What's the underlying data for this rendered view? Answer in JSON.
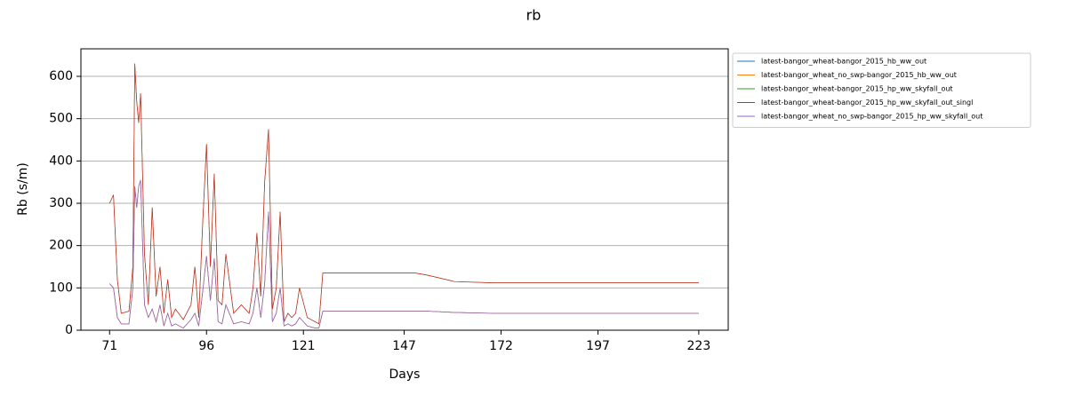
{
  "chart_data": {
    "type": "line",
    "title": "rb",
    "x_label": "Days",
    "y_label": "Rb (s/m)",
    "x": [
      71,
      72,
      73,
      74,
      76,
      77,
      77.5,
      78,
      78.5,
      79,
      80,
      81,
      82,
      83,
      84,
      85,
      86,
      87,
      88,
      90,
      92,
      93,
      94,
      95,
      96,
      97,
      98,
      99,
      100,
      101,
      103,
      105,
      107,
      108,
      109,
      110,
      111,
      112,
      113,
      114,
      115,
      116,
      117,
      118,
      119,
      120,
      122,
      124,
      125,
      126,
      130,
      150,
      153,
      160,
      170,
      190,
      223
    ],
    "series": [
      {
        "name": "latest-bangor_wheat-bangor_2015_hb_ww_out",
        "color": "#1f77b4",
        "values": [
          110,
          100,
          30,
          15,
          15,
          100,
          340,
          290,
          340,
          355,
          60,
          30,
          50,
          20,
          60,
          10,
          40,
          10,
          15,
          5,
          25,
          40,
          10,
          90,
          175,
          70,
          170,
          20,
          15,
          60,
          15,
          20,
          15,
          40,
          100,
          30,
          110,
          280,
          20,
          40,
          100,
          10,
          15,
          10,
          15,
          30,
          10,
          5,
          5,
          45,
          45,
          45,
          45,
          42,
          40,
          40,
          40
        ]
      },
      {
        "name": "latest-bangor_wheat_no_swp-bangor_2015_hb_ww_out",
        "color": "#ff7f0e",
        "values": [
          110,
          100,
          30,
          15,
          15,
          100,
          340,
          290,
          340,
          355,
          60,
          30,
          50,
          20,
          60,
          10,
          40,
          10,
          15,
          5,
          25,
          40,
          10,
          90,
          175,
          70,
          170,
          20,
          15,
          60,
          15,
          20,
          15,
          40,
          100,
          30,
          110,
          280,
          20,
          40,
          100,
          10,
          15,
          10,
          15,
          30,
          10,
          5,
          5,
          45,
          45,
          45,
          45,
          42,
          40,
          40,
          40
        ]
      },
      {
        "name": "latest-bangor_wheat-bangor_2015_hp_ww_skyfall_out",
        "color": "#2ca02c",
        "values": [
          300,
          320,
          120,
          40,
          45,
          150,
          630,
          540,
          490,
          560,
          180,
          60,
          290,
          80,
          150,
          40,
          120,
          30,
          50,
          25,
          60,
          150,
          30,
          250,
          440,
          150,
          370,
          70,
          60,
          180,
          40,
          60,
          40,
          100,
          230,
          80,
          350,
          475,
          50,
          100,
          280,
          20,
          40,
          30,
          40,
          100,
          30,
          20,
          15,
          135,
          135,
          135,
          130,
          115,
          112,
          112,
          112
        ]
      },
      {
        "name": "latest-bangor_wheat-bangor_2015_hp_ww_skyfall_out_singl",
        "color": "#d62728",
        "values": [
          300,
          320,
          120,
          40,
          45,
          150,
          630,
          540,
          490,
          560,
          180,
          60,
          290,
          80,
          150,
          40,
          120,
          30,
          50,
          25,
          60,
          150,
          30,
          250,
          440,
          150,
          370,
          70,
          60,
          180,
          40,
          60,
          40,
          100,
          230,
          80,
          350,
          475,
          50,
          100,
          280,
          20,
          40,
          30,
          40,
          100,
          30,
          20,
          15,
          135,
          135,
          135,
          130,
          115,
          112,
          112,
          112
        ]
      },
      {
        "name": "latest-bangor_wheat_no_swp-bangor_2015_hp_ww_skyfall_out",
        "color": "#9467bd",
        "values": [
          110,
          100,
          30,
          15,
          15,
          100,
          340,
          290,
          340,
          355,
          60,
          30,
          50,
          20,
          60,
          10,
          40,
          10,
          15,
          5,
          25,
          40,
          10,
          90,
          175,
          70,
          170,
          20,
          15,
          60,
          15,
          20,
          15,
          40,
          100,
          30,
          110,
          280,
          20,
          40,
          100,
          10,
          15,
          10,
          15,
          30,
          10,
          5,
          5,
          45,
          45,
          45,
          45,
          42,
          40,
          40,
          40
        ]
      }
    ],
    "xlim": [
      63.6,
      230.6
    ],
    "xticks": [
      71,
      96,
      121,
      147,
      172,
      197,
      223
    ],
    "ylim": [
      0,
      665
    ],
    "yticks": [
      0,
      100,
      200,
      300,
      400,
      500,
      600
    ],
    "grid": "y",
    "legend": "outside upper right"
  }
}
